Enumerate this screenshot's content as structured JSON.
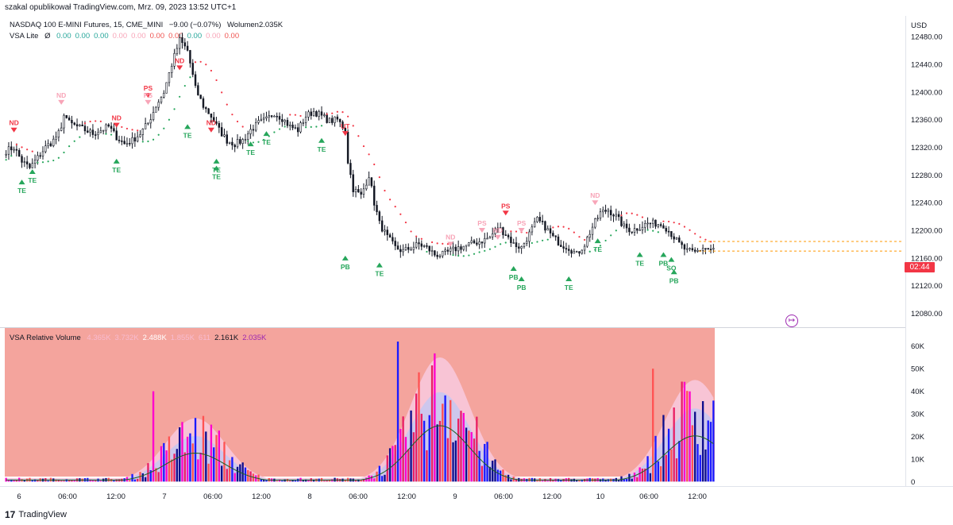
{
  "publish_line": "szakal opublikował TradingView.com, Mrz. 09, 2023 13:52 UTC+1",
  "legend_price": {
    "symbol": "NASDAQ 100 E-MINI Futures, 15, CME_MINI",
    "change": "−9.00 (−0.07%)",
    "volume_label": "Wolumen",
    "volume_value": "2.035K"
  },
  "legend_vsa": {
    "name": "VSA Lite",
    "symbol_char": "Ø",
    "values": [
      {
        "text": "0.00",
        "color": "#26a69a"
      },
      {
        "text": "0.00",
        "color": "#26a69a"
      },
      {
        "text": "0.00",
        "color": "#26a69a"
      },
      {
        "text": "0.00",
        "color": "#f8a5b8"
      },
      {
        "text": "0.00",
        "color": "#f8a5b8"
      },
      {
        "text": "0.00",
        "color": "#ef5350"
      },
      {
        "text": "0.00",
        "color": "#ef5350"
      },
      {
        "text": "0.00",
        "color": "#26a69a"
      },
      {
        "text": "0.00",
        "color": "#f8a5b8"
      },
      {
        "text": "0.00",
        "color": "#ef5350"
      }
    ]
  },
  "legend_relvol": {
    "name": "VSA Relative Volume",
    "values": [
      {
        "text": "4.365K",
        "color": "#f8bbd0"
      },
      {
        "text": "3.732K",
        "color": "#f8bbd0"
      },
      {
        "text": "2.488K",
        "color": "#ffffff"
      },
      {
        "text": "1.855K",
        "color": "#f8bbd0"
      },
      {
        "text": "611",
        "color": "#f8bbd0"
      },
      {
        "text": "2.161K",
        "color": "#131722"
      },
      {
        "text": "2.035K",
        "color": "#9c27b0"
      }
    ]
  },
  "currency": "USD",
  "current_price_label": "02:44",
  "footer_brand": "TradingView",
  "chart_data": [
    {
      "type": "candlestick",
      "title": "NASDAQ 100 E-MINI Futures, 15, CME_MINI",
      "y_ticks": [
        12480,
        12440,
        12400,
        12360,
        12320,
        12280,
        12240,
        12200,
        12160,
        12120,
        12080
      ],
      "y_tick_labels": [
        "12480.00",
        "12440.00",
        "12400.00",
        "12360.00",
        "12320.00",
        "12280.00",
        "12240.00",
        "12200.00",
        "12160.00",
        "12120.00",
        "12080.00"
      ],
      "ylim": [
        12060,
        12510
      ],
      "x_tick_labels": [
        "6",
        "06:00",
        "12:00",
        "7",
        "06:00",
        "12:00",
        "8",
        "06:00",
        "12:00",
        "9",
        "06:00",
        "12:00",
        "10",
        "06:00",
        "12:00"
      ],
      "price_path": [
        [
          0,
          12315
        ],
        [
          3,
          12320
        ],
        [
          6,
          12300
        ],
        [
          9,
          12290
        ],
        [
          12,
          12305
        ],
        [
          15,
          12320
        ],
        [
          18,
          12330
        ],
        [
          21,
          12345
        ],
        [
          22,
          12370
        ],
        [
          24,
          12355
        ],
        [
          27,
          12350
        ],
        [
          30,
          12345
        ],
        [
          33,
          12340
        ],
        [
          36,
          12345
        ],
        [
          39,
          12350
        ],
        [
          42,
          12335
        ],
        [
          45,
          12325
        ],
        [
          48,
          12330
        ],
        [
          51,
          12340
        ],
        [
          54,
          12355
        ],
        [
          57,
          12380
        ],
        [
          60,
          12400
        ],
        [
          63,
          12440
        ],
        [
          66,
          12475
        ],
        [
          69,
          12460
        ],
        [
          72,
          12405
        ],
        [
          75,
          12380
        ],
        [
          78,
          12365
        ],
        [
          81,
          12345
        ],
        [
          84,
          12330
        ],
        [
          87,
          12325
        ],
        [
          90,
          12330
        ],
        [
          93,
          12345
        ],
        [
          96,
          12355
        ],
        [
          99,
          12360
        ],
        [
          102,
          12370
        ],
        [
          105,
          12362
        ],
        [
          108,
          12350
        ],
        [
          111,
          12345
        ],
        [
          114,
          12365
        ],
        [
          117,
          12372
        ],
        [
          120,
          12365
        ],
        [
          123,
          12358
        ],
        [
          126,
          12360
        ],
        [
          129,
          12345
        ],
        [
          130,
          12300
        ],
        [
          132,
          12260
        ],
        [
          135,
          12250
        ],
        [
          138,
          12280
        ],
        [
          140,
          12240
        ],
        [
          142,
          12210
        ],
        [
          145,
          12190
        ],
        [
          148,
          12175
        ],
        [
          151,
          12170
        ],
        [
          154,
          12175
        ],
        [
          157,
          12180
        ],
        [
          160,
          12175
        ],
        [
          163,
          12165
        ],
        [
          166,
          12165
        ],
        [
          169,
          12170
        ],
        [
          172,
          12175
        ],
        [
          175,
          12178
        ],
        [
          178,
          12182
        ],
        [
          181,
          12185
        ],
        [
          184,
          12190
        ],
        [
          187,
          12205
        ],
        [
          190,
          12195
        ],
        [
          193,
          12180
        ],
        [
          196,
          12175
        ],
        [
          199,
          12195
        ],
        [
          202,
          12215
        ],
        [
          205,
          12205
        ],
        [
          208,
          12190
        ],
        [
          211,
          12180
        ],
        [
          214,
          12175
        ],
        [
          217,
          12165
        ],
        [
          220,
          12180
        ],
        [
          223,
          12205
        ],
        [
          226,
          12225
        ],
        [
          229,
          12230
        ],
        [
          232,
          12220
        ],
        [
          235,
          12205
        ],
        [
          238,
          12200
        ],
        [
          241,
          12205
        ],
        [
          244,
          12210
        ],
        [
          247,
          12210
        ],
        [
          250,
          12208
        ],
        [
          253,
          12195
        ],
        [
          256,
          12180
        ],
        [
          259,
          12170
        ],
        [
          262,
          12168
        ],
        [
          265,
          12175
        ],
        [
          268,
          12172
        ]
      ],
      "signals": [
        {
          "i": 3,
          "label": "ND",
          "color": "#f23645",
          "dir": "down",
          "price": 12345
        },
        {
          "i": 6,
          "label": "TE",
          "color": "#26a65b",
          "dir": "up",
          "price": 12270
        },
        {
          "i": 10,
          "label": "TE",
          "color": "#26a65b",
          "dir": "up",
          "price": 12285
        },
        {
          "i": 21,
          "label": "ND",
          "color": "#f8a5b8",
          "dir": "down",
          "price": 12385
        },
        {
          "i": 42,
          "label": "ND",
          "color": "#f23645",
          "dir": "down",
          "price": 12352
        },
        {
          "i": 42,
          "label": "TE",
          "color": "#26a65b",
          "dir": "up",
          "price": 12300
        },
        {
          "i": 54,
          "label": "PS",
          "color": "#f23645",
          "dir": "down",
          "price": 12395
        },
        {
          "i": 54,
          "label": "PS",
          "color": "#f8a5b8",
          "dir": "down",
          "price": 12385
        },
        {
          "i": 66,
          "label": "ND",
          "color": "#f23645",
          "dir": "down",
          "price": 12435
        },
        {
          "i": 69,
          "label": "TE",
          "color": "#26a65b",
          "dir": "up",
          "price": 12350
        },
        {
          "i": 78,
          "label": "ND",
          "color": "#f23645",
          "dir": "down",
          "price": 12345
        },
        {
          "i": 80,
          "label": "TE",
          "color": "#26a65b",
          "dir": "up",
          "price": 12300
        },
        {
          "i": 80,
          "label": "TE",
          "color": "#26a65b",
          "dir": "up",
          "price": 12290
        },
        {
          "i": 93,
          "label": "TE",
          "color": "#26a65b",
          "dir": "up",
          "price": 12325
        },
        {
          "i": 99,
          "label": "TE",
          "color": "#26a65b",
          "dir": "up",
          "price": 12340
        },
        {
          "i": 120,
          "label": "TE",
          "color": "#26a65b",
          "dir": "up",
          "price": 12330
        },
        {
          "i": 129,
          "label": "UT",
          "color": "#f23645",
          "dir": "down",
          "price": 12340
        },
        {
          "i": 129,
          "label": "PB",
          "color": "#26a65b",
          "dir": "up",
          "price": 12160
        },
        {
          "i": 142,
          "label": "TE",
          "color": "#26a65b",
          "dir": "up",
          "price": 12150
        },
        {
          "i": 169,
          "label": "ND",
          "color": "#f8a5b8",
          "dir": "down",
          "price": 12180
        },
        {
          "i": 181,
          "label": "PS",
          "color": "#f8a5b8",
          "dir": "down",
          "price": 12200
        },
        {
          "i": 187,
          "label": "ND",
          "color": "#f8a5b8",
          "dir": "down",
          "price": 12190
        },
        {
          "i": 190,
          "label": "PS",
          "color": "#f23645",
          "dir": "down",
          "price": 12225
        },
        {
          "i": 196,
          "label": "PS",
          "color": "#f8a5b8",
          "dir": "down",
          "price": 12200
        },
        {
          "i": 193,
          "label": "PB",
          "color": "#26a65b",
          "dir": "up",
          "price": 12145
        },
        {
          "i": 196,
          "label": "PB",
          "color": "#26a65b",
          "dir": "up",
          "price": 12130
        },
        {
          "i": 214,
          "label": "TE",
          "color": "#26a65b",
          "dir": "up",
          "price": 12130
        },
        {
          "i": 224,
          "label": "ND",
          "color": "#f8a5b8",
          "dir": "down",
          "price": 12240
        },
        {
          "i": 225,
          "label": "TE",
          "color": "#26a65b",
          "dir": "up",
          "price": 12185
        },
        {
          "i": 241,
          "label": "TE",
          "color": "#26a65b",
          "dir": "up",
          "price": 12165
        },
        {
          "i": 250,
          "label": "PB",
          "color": "#26a65b",
          "dir": "up",
          "price": 12165
        },
        {
          "i": 253,
          "label": "SO",
          "color": "#26a65b",
          "dir": "up",
          "price": 12158
        },
        {
          "i": 254,
          "label": "PB",
          "color": "#26a65b",
          "dir": "up",
          "price": 12140
        }
      ],
      "reference_lines": [
        12184,
        12170
      ]
    },
    {
      "type": "bar",
      "title": "VSA Relative Volume",
      "y_ticks": [
        0,
        10000,
        20000,
        30000,
        40000,
        50000,
        60000
      ],
      "y_tick_labels": [
        "0",
        "10K",
        "20K",
        "30K",
        "40K",
        "50K",
        "60K"
      ],
      "ylim": [
        -2000,
        68000
      ],
      "background": "#f4a49d",
      "bar_colors": [
        "#ff00cc",
        "#1a1aff",
        "#e91e63",
        "#ff5252",
        "#0d0d8c"
      ],
      "session_peaks": [
        {
          "center": 72,
          "peak": 28000,
          "spike": 40000
        },
        {
          "center": 165,
          "peak": 55000,
          "spike": 62000
        },
        {
          "center": 262,
          "peak": 45000,
          "spike": 50000
        }
      ]
    }
  ]
}
